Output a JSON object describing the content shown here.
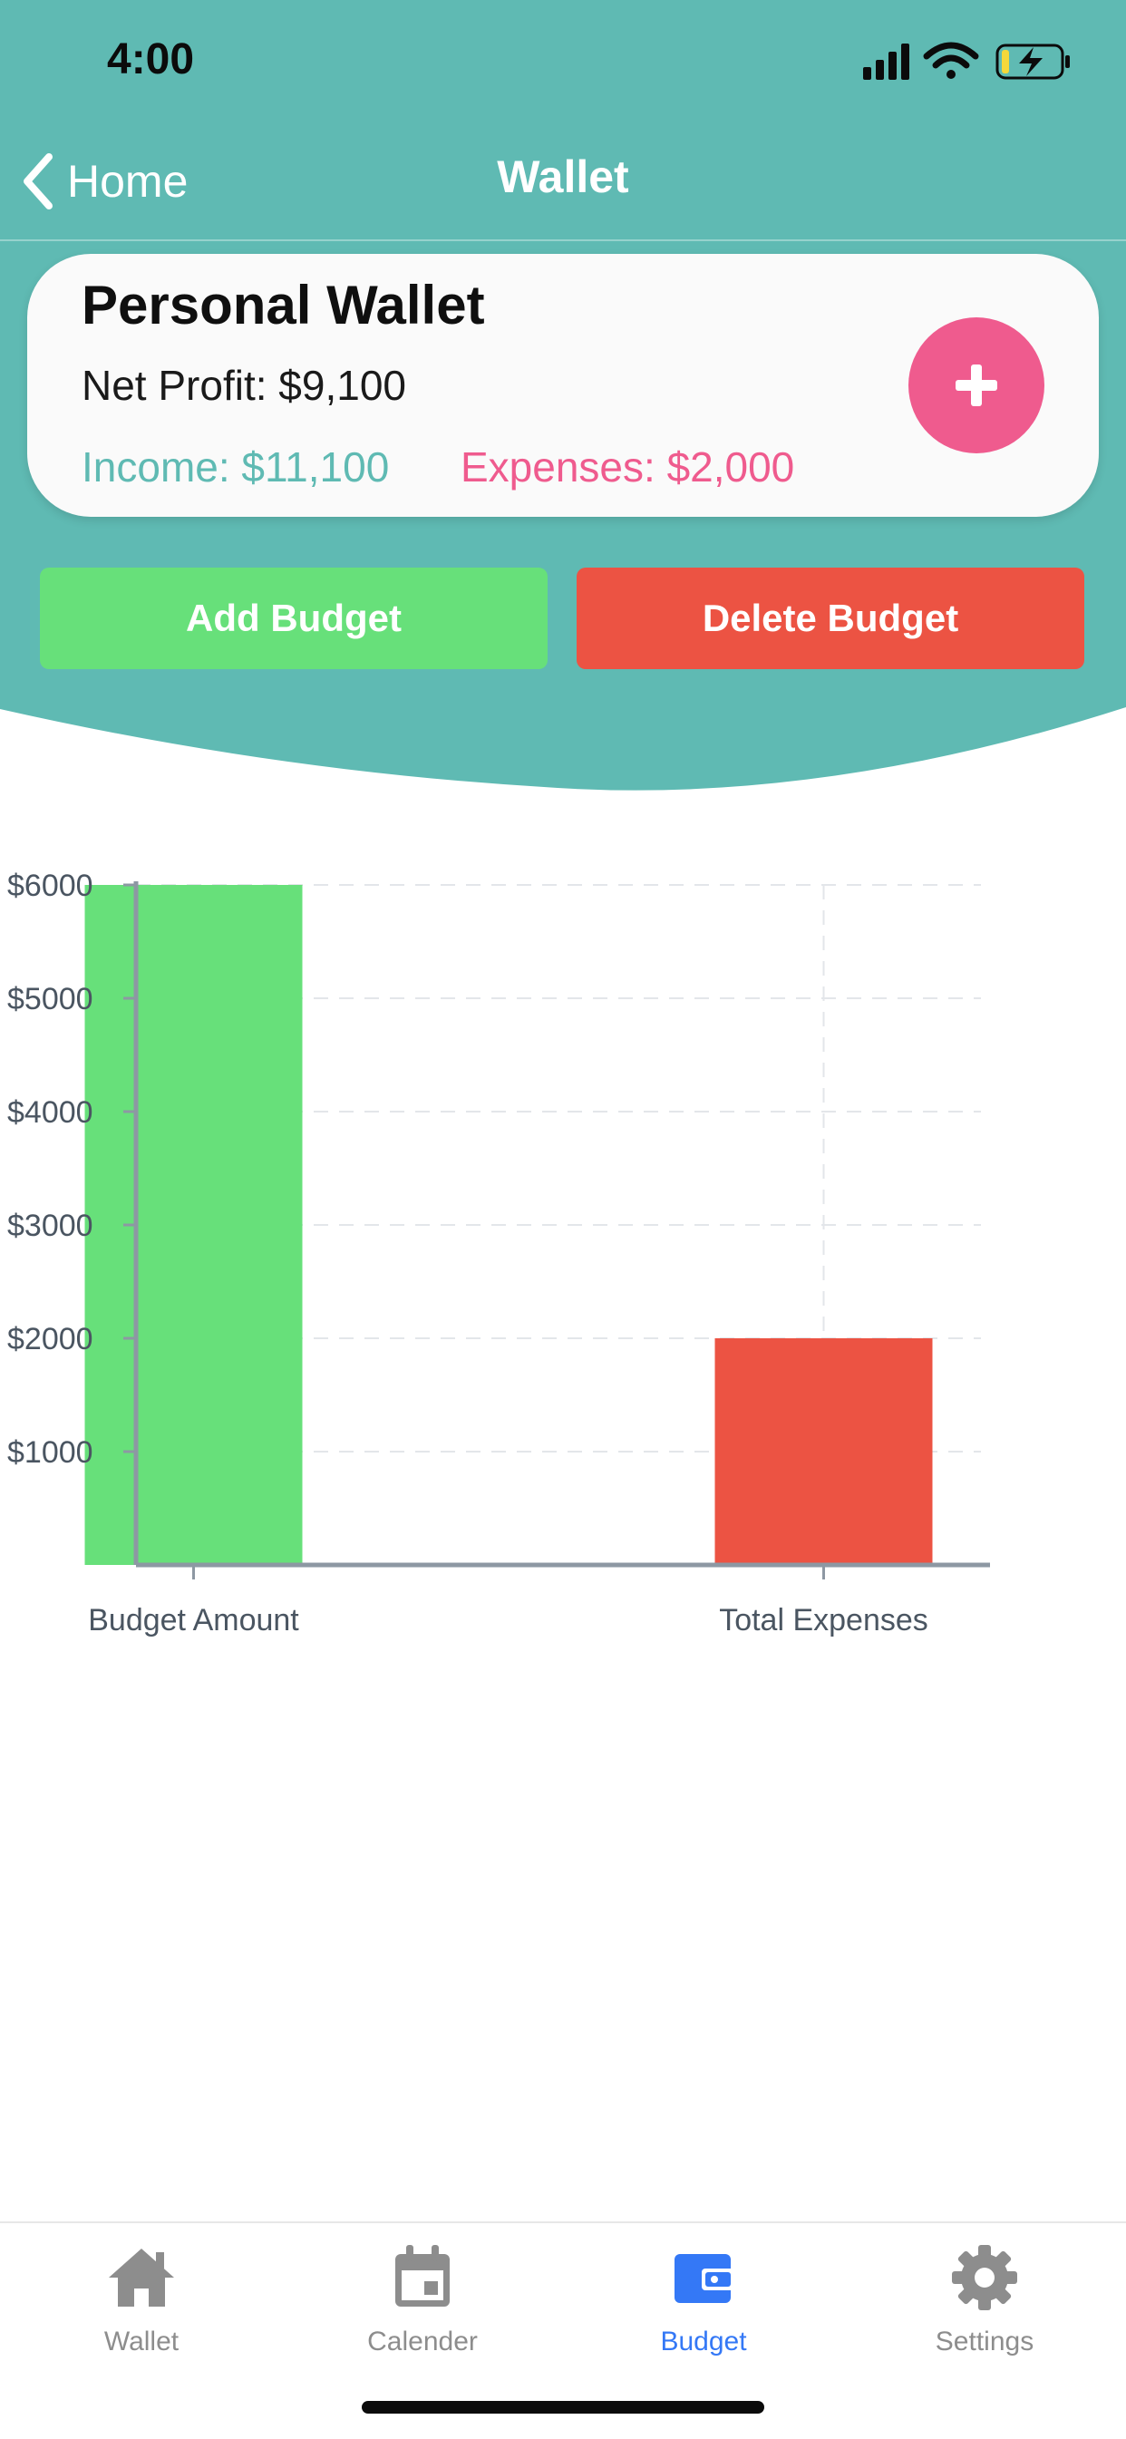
{
  "status_bar": {
    "time": "4:00"
  },
  "nav": {
    "back_label": "Home",
    "title": "Wallet"
  },
  "wallet": {
    "name": "Personal Wallet",
    "net_profit": "Net Profit: $9,100",
    "income": "Income: $11,100",
    "expenses": "Expenses: $2,000"
  },
  "actions": {
    "add_budget": "Add Budget",
    "delete_budget": "Delete Budget"
  },
  "chart_data": {
    "type": "bar",
    "categories": [
      "Budget Amount",
      "Total Expenses"
    ],
    "values": [
      6000,
      2000
    ],
    "colors": [
      "#67e07a",
      "#ec5343"
    ],
    "ylim": [
      0,
      6000
    ],
    "yticks": [
      1000,
      2000,
      3000,
      4000,
      5000,
      6000
    ],
    "ytick_labels": [
      "$1000",
      "$2000",
      "$3000",
      "$4000",
      "$5000",
      "$6000"
    ],
    "grid": true
  },
  "tabs": [
    {
      "label": "Wallet",
      "icon": "home-icon",
      "active": false
    },
    {
      "label": "Calender",
      "icon": "calendar-icon",
      "active": false
    },
    {
      "label": "Budget",
      "icon": "wallet-icon",
      "active": true
    },
    {
      "label": "Settings",
      "icon": "gear-icon",
      "active": false
    }
  ],
  "colors": {
    "teal": "#5fbab3",
    "pink": "#ef5b8e",
    "green": "#67e07a",
    "red": "#ec5343",
    "active_tab": "#3478f6",
    "inactive_tab": "#8d8d8d"
  }
}
